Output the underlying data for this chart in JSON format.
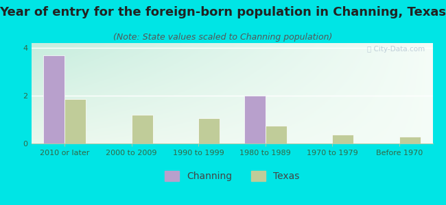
{
  "title": "Year of entry for the foreign-born population in Channing, Texas",
  "subtitle": "(Note: State values scaled to Channing population)",
  "categories": [
    "2010 or later",
    "2000 to 2009",
    "1990 to 1999",
    "1980 to 1989",
    "1970 to 1979",
    "Before 1970"
  ],
  "channing_values": [
    3.7,
    0,
    0,
    2.0,
    0,
    0
  ],
  "texas_values": [
    1.85,
    1.2,
    1.05,
    0.75,
    0.38,
    0.28
  ],
  "channing_color": "#b8a0cc",
  "texas_color": "#c0cc99",
  "background_color": "#00e5e5",
  "ylim": [
    0,
    4.2
  ],
  "yticks": [
    0,
    2,
    4
  ],
  "bar_width": 0.32,
  "title_fontsize": 13,
  "subtitle_fontsize": 9,
  "tick_fontsize": 8,
  "legend_fontsize": 10,
  "watermark_text": "ⓘ City-Data.com"
}
